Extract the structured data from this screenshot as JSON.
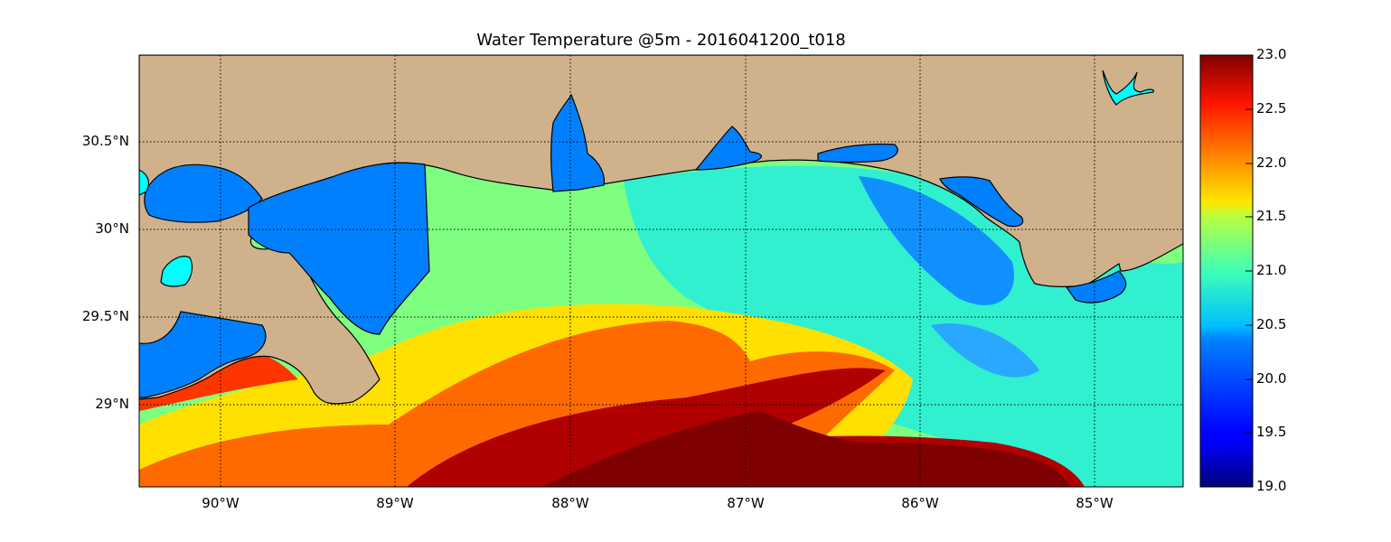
{
  "title": "Water Temperature @5m - 2016041200_t018",
  "map": {
    "lon_range": [
      -90.47,
      -84.5
    ],
    "lat_range": [
      28.55,
      31.0
    ],
    "x_ticks": [
      {
        "lon": -90,
        "label": "90°W"
      },
      {
        "lon": -89,
        "label": "89°W"
      },
      {
        "lon": -88,
        "label": "88°W"
      },
      {
        "lon": -87,
        "label": "87°W"
      },
      {
        "lon": -86,
        "label": "86°W"
      },
      {
        "lon": -85,
        "label": "85°W"
      }
    ],
    "y_ticks": [
      {
        "lat": 30.5,
        "label": "30.5°N"
      },
      {
        "lat": 30.0,
        "label": "30°N"
      },
      {
        "lat": 29.5,
        "label": "29.5°N"
      },
      {
        "lat": 29.0,
        "label": "29°N"
      }
    ],
    "grid": "dotted",
    "land_color": "#cfb28c",
    "water_body_color": "#0080ff",
    "lake_color": "#00ffff",
    "coastline_color": "#000000"
  },
  "colorbar": {
    "min": 19.0,
    "max": 23.0,
    "colormap": "jet",
    "ticks": [
      "19.0",
      "19.5",
      "20.0",
      "20.5",
      "21.0",
      "21.5",
      "22.0",
      "22.5",
      "23.0"
    ]
  }
}
